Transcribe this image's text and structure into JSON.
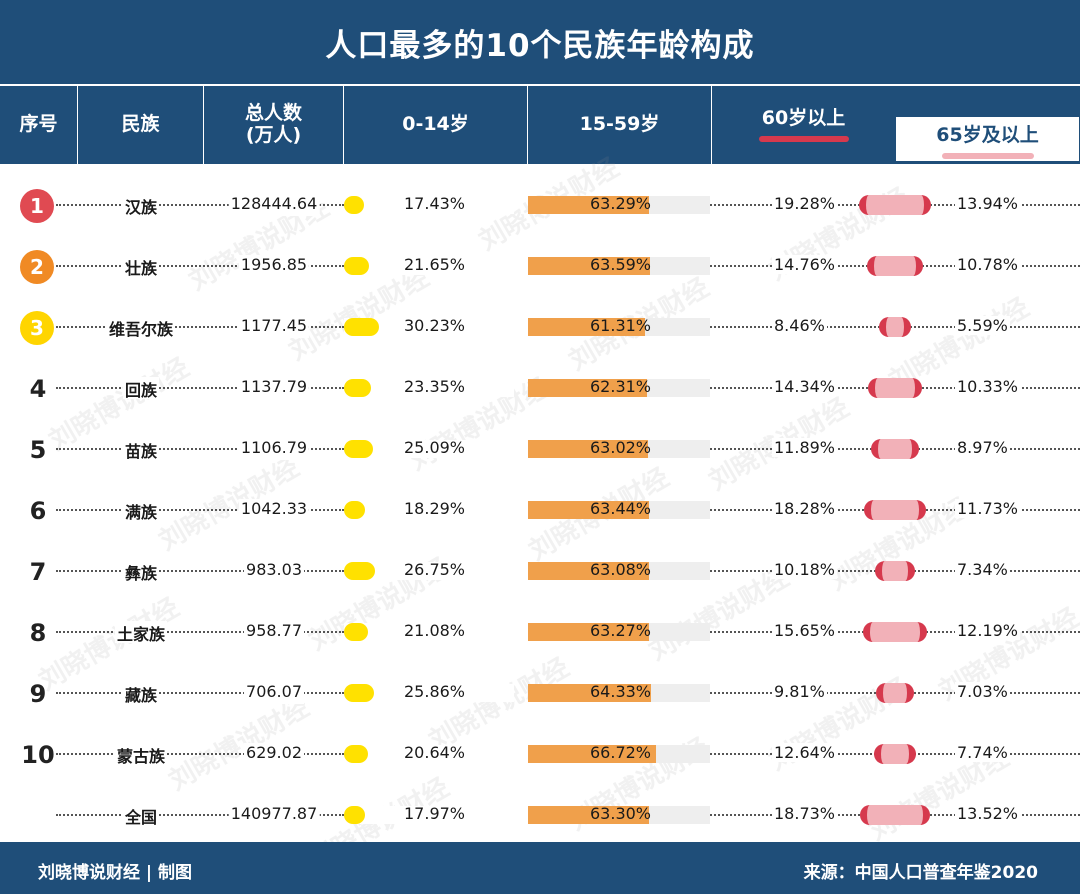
{
  "title": "人口最多的10个民族年龄构成",
  "headers": {
    "rank": "序号",
    "ethnic": "民族",
    "total_line1": "总人数",
    "total_line2": "(万人)",
    "age_0_14": "0-14岁",
    "age_15_59": "15-59岁",
    "age_60": "60岁以上",
    "age_65": "65岁及以上"
  },
  "colors": {
    "navy": "#1f4e79",
    "yellow": "#ffe100",
    "orange": "#f0a04b",
    "red": "#d6394d",
    "pink": "#f2b1b8",
    "rank1": "#e04a52",
    "rank2": "#f08a24",
    "rank3": "#ffd500"
  },
  "watermark": "刘晓博说财经",
  "chart_data": {
    "type": "table",
    "columns": [
      "序号",
      "民族",
      "总人数(万人)",
      "0-14岁",
      "15-59岁",
      "60岁以上",
      "65岁及以上"
    ],
    "rows": [
      {
        "rank": "1",
        "ethnic": "汉族",
        "total": "128444.64",
        "a0_14": 17.43,
        "a15_59": 63.29,
        "a60": 19.28,
        "a65": 13.94
      },
      {
        "rank": "2",
        "ethnic": "壮族",
        "total": "1956.85",
        "a0_14": 21.65,
        "a15_59": 63.59,
        "a60": 14.76,
        "a65": 10.78
      },
      {
        "rank": "3",
        "ethnic": "维吾尔族",
        "total": "1177.45",
        "a0_14": 30.23,
        "a15_59": 61.31,
        "a60": 8.46,
        "a65": 5.59
      },
      {
        "rank": "4",
        "ethnic": "回族",
        "total": "1137.79",
        "a0_14": 23.35,
        "a15_59": 62.31,
        "a60": 14.34,
        "a65": 10.33
      },
      {
        "rank": "5",
        "ethnic": "苗族",
        "total": "1106.79",
        "a0_14": 25.09,
        "a15_59": 63.02,
        "a60": 11.89,
        "a65": 8.97
      },
      {
        "rank": "6",
        "ethnic": "满族",
        "total": "1042.33",
        "a0_14": 18.29,
        "a15_59": 63.44,
        "a60": 18.28,
        "a65": 11.73
      },
      {
        "rank": "7",
        "ethnic": "彝族",
        "total": "983.03",
        "a0_14": 26.75,
        "a15_59": 63.08,
        "a60": 10.18,
        "a65": 7.34
      },
      {
        "rank": "8",
        "ethnic": "土家族",
        "total": "958.77",
        "a0_14": 21.08,
        "a15_59": 63.27,
        "a60": 15.65,
        "a65": 12.19
      },
      {
        "rank": "9",
        "ethnic": "藏族",
        "total": "706.07",
        "a0_14": 25.86,
        "a15_59": 64.33,
        "a60": 9.81,
        "a65": 7.03
      },
      {
        "rank": "10",
        "ethnic": "蒙古族",
        "total": "629.02",
        "a0_14": 20.64,
        "a15_59": 66.72,
        "a60": 12.64,
        "a65": 7.74
      },
      {
        "rank": "",
        "ethnic": "全国",
        "total": "140977.87",
        "a0_14": 17.97,
        "a15_59": 63.3,
        "a60": 18.73,
        "a65": 13.52
      }
    ]
  },
  "footer": {
    "left": "刘晓博说财经 | 制图",
    "right": "来源：中国人口普查年鉴2020"
  }
}
